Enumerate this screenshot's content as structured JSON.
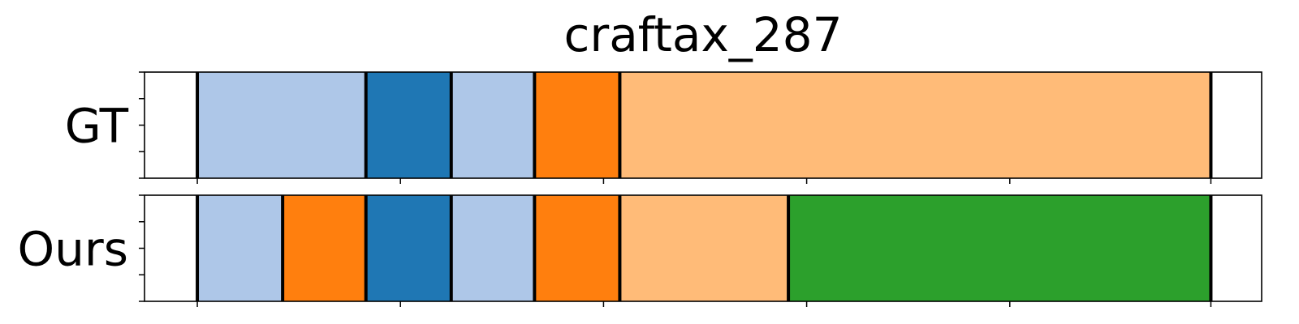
{
  "chart_data": {
    "type": "segmentation_timeline",
    "title": "craftax_287",
    "rows": [
      {
        "label": "GT",
        "segments": [
          {
            "start": 0,
            "end": 26,
            "color": "#ffffff"
          },
          {
            "start": 26,
            "end": 109,
            "color": "#aec7e8"
          },
          {
            "start": 109,
            "end": 151,
            "color": "#1f77b4"
          },
          {
            "start": 151,
            "end": 192,
            "color": "#aec7e8"
          },
          {
            "start": 192,
            "end": 234,
            "color": "#ff7f0e"
          },
          {
            "start": 234,
            "end": 525,
            "color": "#ffbb78"
          },
          {
            "start": 525,
            "end": 550,
            "color": "#ffffff"
          }
        ],
        "boundaries": [
          26,
          109,
          151,
          192,
          234,
          525
        ]
      },
      {
        "label": "Ours",
        "segments": [
          {
            "start": 0,
            "end": 26,
            "color": "#ffffff"
          },
          {
            "start": 26,
            "end": 68,
            "color": "#aec7e8"
          },
          {
            "start": 68,
            "end": 109,
            "color": "#ff7f0e"
          },
          {
            "start": 109,
            "end": 151,
            "color": "#1f77b4"
          },
          {
            "start": 151,
            "end": 192,
            "color": "#aec7e8"
          },
          {
            "start": 192,
            "end": 234,
            "color": "#ff7f0e"
          },
          {
            "start": 234,
            "end": 317,
            "color": "#ffbb78"
          },
          {
            "start": 317,
            "end": 525,
            "color": "#2ca02c"
          },
          {
            "start": 525,
            "end": 550,
            "color": "#ffffff"
          }
        ],
        "boundaries": [
          26,
          68,
          109,
          151,
          192,
          234,
          317,
          525
        ]
      }
    ],
    "xlim": [
      0,
      550
    ],
    "x_ticks": [
      26,
      126,
      226,
      326,
      426,
      525
    ],
    "y_ticks": [
      0,
      1,
      2,
      3,
      4
    ],
    "grid": false,
    "legend": "none",
    "colors": {
      "light_blue": "#aec7e8",
      "blue": "#1f77b4",
      "orange": "#ff7f0e",
      "light_orange": "#ffbb78",
      "green": "#2ca02c",
      "boundary": "#000000"
    }
  }
}
